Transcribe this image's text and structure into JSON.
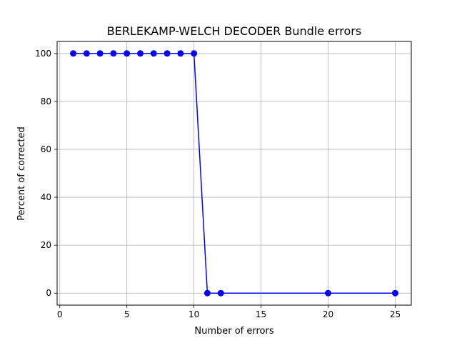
{
  "chart_data": {
    "type": "line",
    "title": "BERLEKAMP-WELCH DECODER Bundle errors",
    "xlabel": "Number of errors",
    "ylabel": "Percent of corrected",
    "xlim": [
      -0.2,
      26.2
    ],
    "ylim": [
      -5,
      105
    ],
    "xticks": [
      0,
      5,
      10,
      15,
      20,
      25
    ],
    "xtick_labels": [
      "0",
      "5",
      "10",
      "15",
      "20",
      "25"
    ],
    "yticks": [
      0,
      20,
      40,
      60,
      80,
      100
    ],
    "ytick_labels": [
      "0",
      "20",
      "40",
      "60",
      "80",
      "100"
    ],
    "grid": true,
    "series": [
      {
        "color": "#0000ff",
        "marker": "circle",
        "x": [
          1,
          2,
          3,
          4,
          5,
          6,
          7,
          8,
          9,
          10,
          11,
          12,
          20,
          25
        ],
        "y": [
          100,
          100,
          100,
          100,
          100,
          100,
          100,
          100,
          100,
          100,
          0,
          0,
          0,
          0
        ]
      }
    ]
  }
}
